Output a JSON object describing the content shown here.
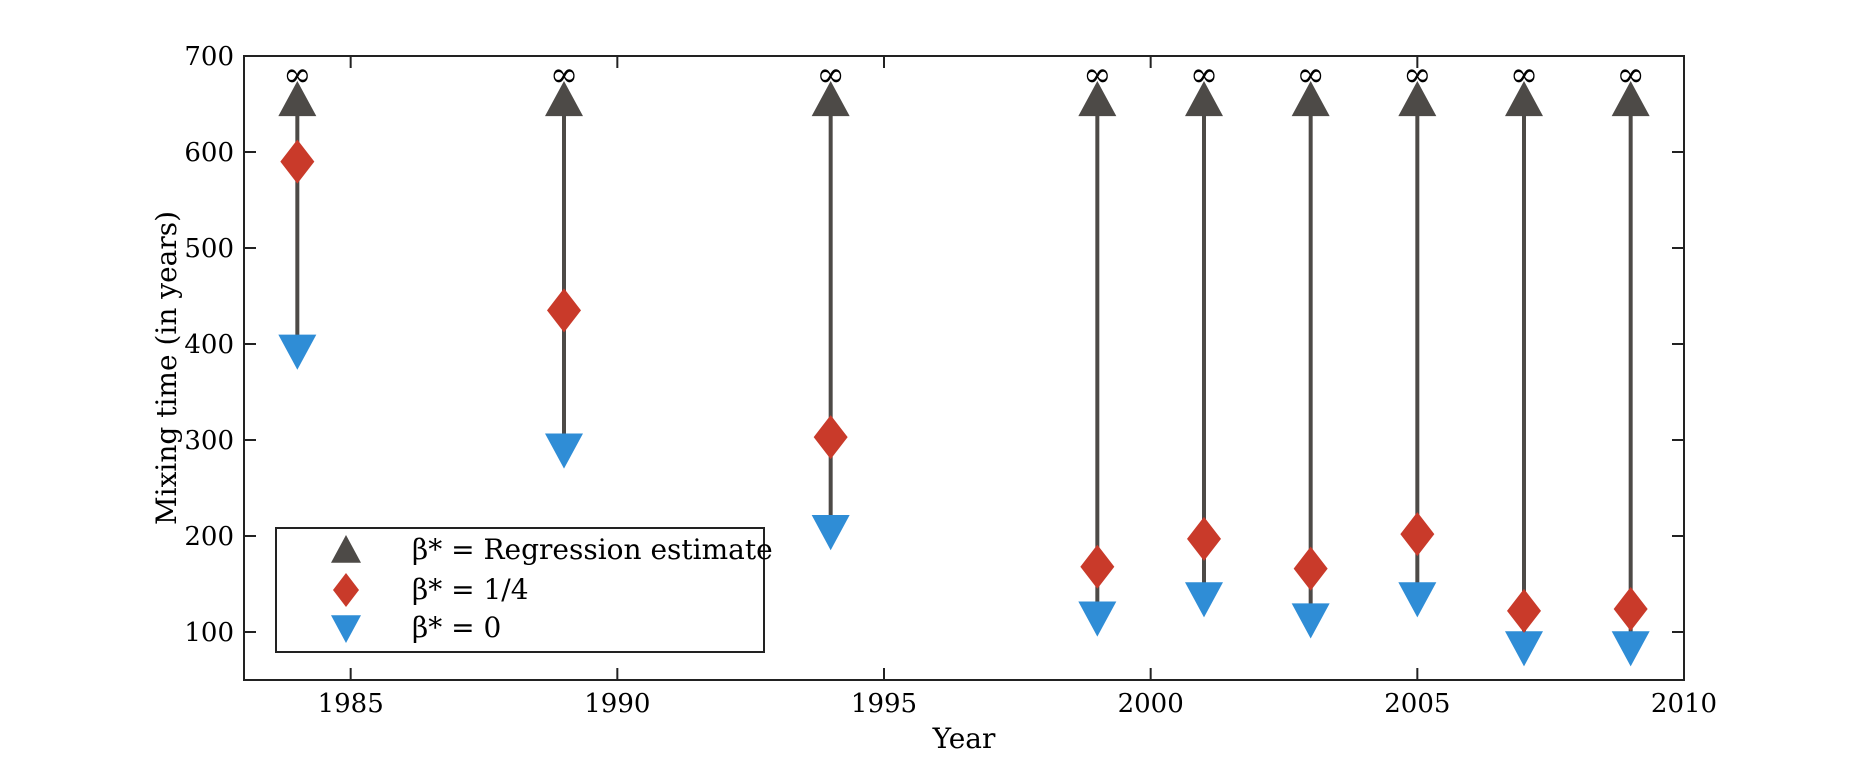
{
  "chart_data": {
    "type": "scatter",
    "title": "",
    "xlabel": "Year",
    "ylabel": "Mixing time (in years)",
    "xlim": [
      1983,
      2010
    ],
    "ylim": [
      50,
      700
    ],
    "xticks": [
      "1985",
      "1990",
      "1995",
      "2000",
      "2005",
      "2010"
    ],
    "yticks": [
      "100",
      "200",
      "300",
      "400",
      "500",
      "600",
      "700"
    ],
    "x": [
      1984,
      1989,
      1994,
      1999,
      2001,
      2003,
      2005,
      2007,
      2009
    ],
    "upper_value_label": "∞",
    "series": [
      {
        "name": "β* = Regression estimate",
        "label_main": "β* = Regression estimate",
        "marker": "triangle-up",
        "color": "#4d4a47",
        "values": [
          "∞",
          "∞",
          "∞",
          "∞",
          "∞",
          "∞",
          "∞",
          "∞",
          "∞"
        ]
      },
      {
        "name": "β* = 1/4",
        "label_main": "β* = 1/4",
        "marker": "diamond",
        "color": "#c93a2a",
        "values": [
          590,
          435,
          303,
          168,
          197,
          166,
          202,
          122,
          124
        ]
      },
      {
        "name": "β* = 0",
        "label_main": "β* = 0",
        "marker": "triangle-down",
        "color": "#2f8dd6",
        "values": [
          393,
          290,
          205,
          115,
          135,
          113,
          135,
          84,
          84
        ]
      }
    ],
    "legend_position": "bottom-left",
    "grid": false
  }
}
